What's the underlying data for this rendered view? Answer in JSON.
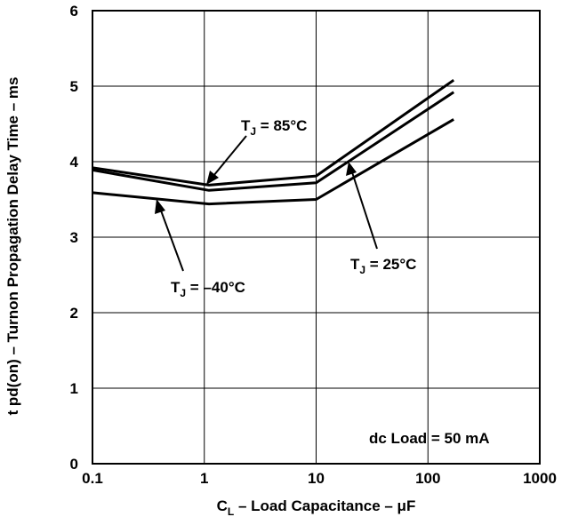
{
  "chart_data": {
    "type": "line",
    "xscale": "log",
    "xlim": [
      0.1,
      1000
    ],
    "ylim": [
      0,
      6
    ],
    "grid": true,
    "x_ticks": [
      "0.1",
      "1",
      "10",
      "100",
      "1000"
    ],
    "y_ticks": [
      "0",
      "1",
      "2",
      "3",
      "4",
      "5",
      "6"
    ],
    "xlabel": {
      "main": "C",
      "sub": "L",
      "rest": " – Load Capacitance – μF"
    },
    "ylabel": "t pd(on) – Turnon Propagation Delay Time – ms",
    "series": [
      {
        "name": "TJ = 85°C",
        "x": [
          0.1,
          1.1,
          10,
          170
        ],
        "y": [
          3.92,
          3.69,
          3.81,
          5.08
        ]
      },
      {
        "name": "TJ = 25°C",
        "x": [
          0.1,
          1.1,
          10,
          170
        ],
        "y": [
          3.89,
          3.62,
          3.72,
          4.92
        ]
      },
      {
        "name": "TJ = –40°C",
        "x": [
          0.1,
          1.1,
          10,
          170
        ],
        "y": [
          3.59,
          3.44,
          3.5,
          4.56
        ]
      }
    ],
    "annotations": [
      {
        "id": "tj85",
        "main": "T",
        "sub": "J",
        "rest": " = 85°C"
      },
      {
        "id": "tj25",
        "main": "T",
        "sub": "J",
        "rest": " = 25°C"
      },
      {
        "id": "tjm40",
        "main": "T",
        "sub": "J",
        "rest": " = –40°C"
      },
      {
        "id": "load",
        "text": "dc Load = 50 mA"
      }
    ]
  }
}
